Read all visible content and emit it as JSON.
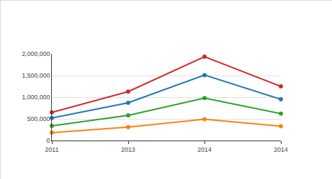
{
  "chart_data": {
    "type": "line",
    "categories": [
      "2011",
      "2013",
      "2014",
      "2014"
    ],
    "series": [
      {
        "color": "#d62728",
        "values": [
          650000,
          1130000,
          1935000,
          1250000
        ]
      },
      {
        "color": "#1f77b4",
        "values": [
          520000,
          870000,
          1510000,
          950000
        ]
      },
      {
        "color": "#2ca02c",
        "values": [
          340000,
          580000,
          980000,
          620000
        ]
      },
      {
        "color": "#ff7f0e",
        "values": [
          180000,
          310000,
          490000,
          330000
        ]
      }
    ],
    "ylim": [
      0,
      2000000
    ],
    "yticks": [
      0,
      {
        "value": 500000,
        "label": "500,000"
      },
      {
        "value": 1000000,
        "label": "1,000,000"
      },
      {
        "value": 1500000,
        "label": "1,500,000"
      },
      {
        "value": 2000000,
        "label": "2,000,000"
      }
    ],
    "grid": true,
    "marker": "circle"
  }
}
